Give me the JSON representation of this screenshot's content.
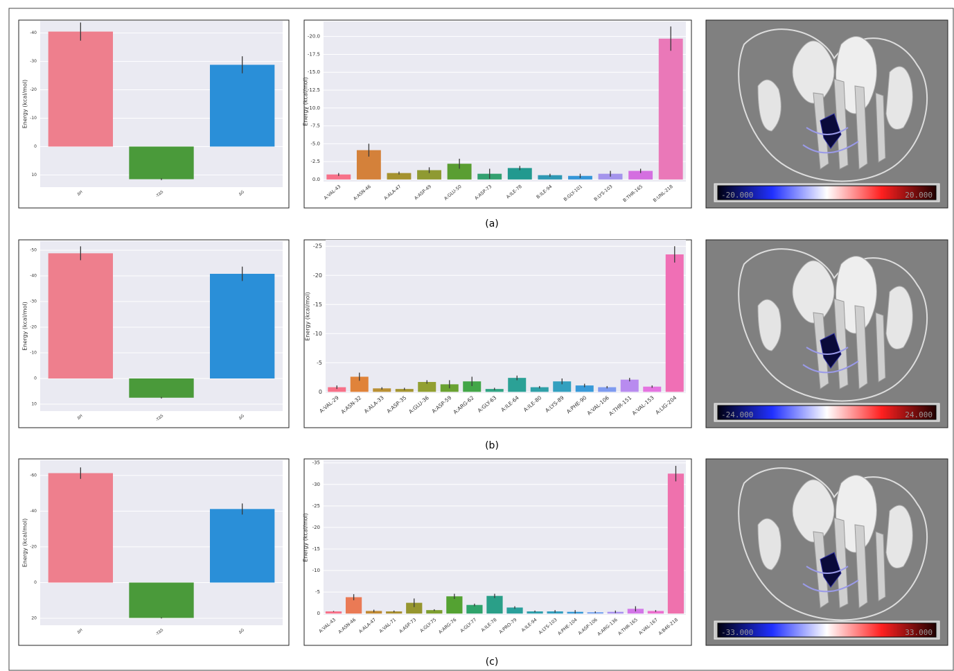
{
  "chart_data": [
    {
      "type": "bar",
      "y_label": "Energy (kcal/mol)",
      "categories": [
        "ΔH",
        "-TΔS",
        "ΔG"
      ],
      "values": [
        -40.5,
        11.5,
        -28.8
      ],
      "errors": [
        3.2,
        0.3,
        3.0
      ],
      "colors": [
        "#ee7f8d",
        "#4a9a3a",
        "#2a8fd8"
      ],
      "ylim": [
        14.3,
        -44.3
      ],
      "yticks": [
        -40,
        -30,
        -20,
        -10,
        0,
        10
      ],
      "grid": true
    },
    {
      "type": "bar",
      "y_label": "Energy (kcal/mol)",
      "categories": [
        "A:VAL-43",
        "A:ASN-46",
        "A:ALA-47",
        "A:ASP-49",
        "A:GLU-50",
        "A:ASP-73",
        "A:ILE-78",
        "B:ILE-94",
        "B:GLY-101",
        "B:LYS-103",
        "B:THR-165",
        "B:UNL-218"
      ],
      "values": [
        -0.7,
        -4.1,
        -0.9,
        -1.3,
        -2.2,
        -0.8,
        -1.6,
        -0.6,
        -0.5,
        -0.8,
        -1.2,
        -19.7
      ],
      "errors": [
        0.2,
        0.9,
        0.2,
        0.4,
        0.7,
        0.7,
        0.3,
        0.2,
        0.3,
        0.4,
        0.3,
        1.7
      ],
      "colors": [
        "#f77189",
        "#d4813a",
        "#a5922f",
        "#8f9a32",
        "#5a9e32",
        "#33a070",
        "#22998f",
        "#2f98b4",
        "#3596d8",
        "#a494ec",
        "#d46fe0",
        "#ea78b8"
      ],
      "ylim": [
        0.3,
        -22.1
      ],
      "yticks": [
        {
          "value": 0,
          "label": "0.0"
        },
        {
          "value": -2.5,
          "label": "-2.5"
        },
        {
          "value": -5,
          "label": "-5.0"
        },
        {
          "value": -7.5,
          "label": "-7.5"
        },
        {
          "value": -10,
          "label": "-10.0"
        },
        {
          "value": -12.5,
          "label": "-12.5"
        },
        {
          "value": -15,
          "label": "-15.0"
        },
        {
          "value": -17.5,
          "label": "-17.5"
        },
        {
          "value": -20,
          "label": "-20.0"
        }
      ],
      "grid": true
    },
    {
      "type": "bar",
      "y_label": "Energy (kcal/mol)",
      "categories": [
        "ΔH",
        "-TΔS",
        "ΔG"
      ],
      "values": [
        -48.8,
        7.5,
        -40.8
      ],
      "errors": [
        2.7,
        0.3,
        2.8
      ],
      "colors": [
        "#ee7f8d",
        "#4a9a3a",
        "#2a8fd8"
      ],
      "ylim": [
        12.7,
        -53.5
      ],
      "yticks": [
        -50,
        -40,
        -30,
        -20,
        -10,
        0,
        10
      ],
      "grid": true
    },
    {
      "type": "bar",
      "y_label": "Energy (kcal/mol)",
      "categories": [
        "A:VAL-29",
        "A:ASN-32",
        "A:ALA-33",
        "A:ASP-35",
        "A:GLU-36",
        "A:ASP-59",
        "A:ARG-62",
        "A:GLY-63",
        "A:ILE-64",
        "A:ILE-80",
        "A:LYS-89",
        "A:PHE-90",
        "A:VAL-106",
        "A:THR-151",
        "A:VAL-153",
        "A:LIG-204"
      ],
      "values": [
        -0.8,
        -2.6,
        -0.6,
        -0.5,
        -1.7,
        -1.3,
        -1.8,
        -0.5,
        -2.4,
        -0.8,
        -1.8,
        -1.1,
        -0.8,
        -2.1,
        -0.9,
        -23.6
      ],
      "errors": [
        0.3,
        0.7,
        0.2,
        0.2,
        0.3,
        0.7,
        0.8,
        0.2,
        0.4,
        0.2,
        0.5,
        0.3,
        0.2,
        0.3,
        0.2,
        1.4
      ],
      "colors": [
        "#f77189",
        "#e0833a",
        "#b99035",
        "#a49532",
        "#92a032",
        "#6aa232",
        "#43a648",
        "#32a484",
        "#2ba196",
        "#30a0a8",
        "#33a0bf",
        "#389ad8",
        "#7f9bf0",
        "#b88bef",
        "#e474e0",
        "#f06fb5"
      ],
      "ylim": [
        0.2,
        -26.1
      ],
      "yticks": [
        0,
        -5,
        -10,
        -15,
        -20,
        -25
      ],
      "grid": true
    },
    {
      "type": "bar",
      "y_label": "Energy (kcal/mol)",
      "categories": [
        "ΔH",
        "-TΔS",
        "ΔG"
      ],
      "values": [
        -61.3,
        19.8,
        -41.2
      ],
      "errors": [
        3.2,
        0.3,
        3.1
      ],
      "colors": [
        "#ee7f8d",
        "#4a9a3a",
        "#2a8fd8"
      ],
      "ylim": [
        23.9,
        -68.5
      ],
      "yticks": [
        -60,
        -40,
        -20,
        0,
        20
      ],
      "grid": true
    },
    {
      "type": "bar",
      "y_label": "Energy (kcal/mol)",
      "categories": [
        "A:VAL-43",
        "A:ASN-46",
        "A:ALA-47",
        "A:VAL-71",
        "A:ASP-73",
        "A:GLY-75",
        "A:ARG-76",
        "A:GLY-77",
        "A:ILE-78",
        "A:PRO-79",
        "A:ILE-94",
        "A:LYS-103",
        "A:PHE-104",
        "A:ASP-106",
        "A:ARG-136",
        "A:THR-165",
        "A:VAL-167",
        "A:B46-218"
      ],
      "values": [
        -0.5,
        -3.8,
        -0.6,
        -0.5,
        -2.5,
        -0.8,
        -4.0,
        -2.0,
        -4.1,
        -1.4,
        -0.5,
        -0.5,
        -0.4,
        -0.3,
        -0.4,
        -1.1,
        -0.6,
        -32.5
      ],
      "errors": [
        0.1,
        0.7,
        0.3,
        0.2,
        1.0,
        0.2,
        0.6,
        0.3,
        0.5,
        0.3,
        0.2,
        0.3,
        0.4,
        0.2,
        0.3,
        0.6,
        0.2,
        1.8
      ],
      "colors": [
        "#f77189",
        "#ea7a55",
        "#c08a32",
        "#a98f31",
        "#96962f",
        "#7d9e30",
        "#54a232",
        "#2fa36b",
        "#2a9f88",
        "#2aa09b",
        "#2e9fac",
        "#319ebe",
        "#3598d6",
        "#6d9cef",
        "#a891ef",
        "#d377e8",
        "#ec6fcf",
        "#ef71ad"
      ],
      "ylim": [
        0.3,
        -35.6
      ],
      "yticks": [
        0,
        -5,
        -10,
        -15,
        -20,
        -25,
        -30,
        -35
      ],
      "grid": true
    }
  ],
  "panels": [
    {
      "caption": "(a)",
      "colorbar_labels": [
        "-20.000",
        "20.000"
      ]
    },
    {
      "caption": "(b)",
      "colorbar_labels": [
        "-24.000",
        "24.000"
      ]
    },
    {
      "caption": "(c)",
      "colorbar_labels": [
        "-33.000",
        "33.000"
      ]
    }
  ]
}
